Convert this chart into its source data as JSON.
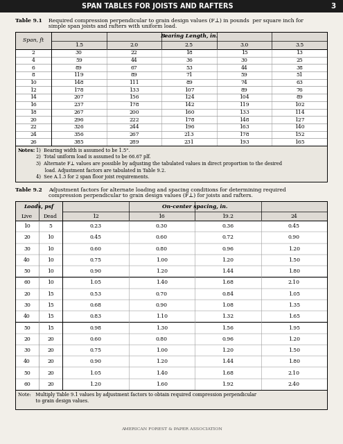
{
  "title": "SPAN TABLES FOR JOISTS AND RAFTERS",
  "page_num": "3",
  "bg_color": "#f2efe9",
  "header_bg": "#1c1c1c",
  "header_text_color": "#ffffff",
  "table1_title": "Table 9.1",
  "table1_desc_line1": "Required compression perpendicular to grain design values (F",
  "table1_desc_sub": "⊥",
  "table1_desc_line2": ") in pounds  per square inch for",
  "table1_desc_line3": "simple span joists and rafters with uniform load.",
  "table1_col_header": "Bearing Length, in.",
  "table1_data": [
    [
      2,
      30,
      22,
      18,
      15,
      13
    ],
    [
      4,
      59,
      44,
      36,
      30,
      25
    ],
    [
      6,
      89,
      67,
      53,
      44,
      38
    ],
    [
      8,
      119,
      89,
      71,
      59,
      51
    ],
    [
      10,
      148,
      111,
      89,
      74,
      63
    ],
    [
      12,
      178,
      133,
      107,
      89,
      76
    ],
    [
      14,
      207,
      156,
      124,
      104,
      89
    ],
    [
      16,
      237,
      178,
      142,
      119,
      102
    ],
    [
      18,
      267,
      200,
      160,
      133,
      114
    ],
    [
      20,
      296,
      222,
      178,
      148,
      127
    ],
    [
      22,
      326,
      244,
      196,
      163,
      140
    ],
    [
      24,
      356,
      267,
      213,
      178,
      152
    ],
    [
      26,
      385,
      289,
      231,
      193,
      165
    ]
  ],
  "table1_col_labels": [
    "1.5",
    "2.0",
    "2.5",
    "3.0",
    "3.5"
  ],
  "table1_note_lines": [
    "1)  Bearing width is assumed to be 1.5\".",
    "2)  Total uniform load is assumed to be 66.67 plf.",
    "3)  Alternate F⊥ values are possible by adjusting the tabulated values in direct proportion to the desired",
    "      load. Adjustment factors are tabulated in Table 9.2.",
    "4)  See A.1.3 for 2 span floor joist requirements."
  ],
  "table2_title": "Table 9.2",
  "table2_desc_line1": "Adjustment factors for alternate loading and spacing conditions for determining required",
  "table2_desc_line2": "compression perpendicular to grain design values (F⊥) for joists and rafters.",
  "table2_col_header": "On-center spacing, in.",
  "table2_loads_header": "Loads, psf",
  "table2_col_labels": [
    "12",
    "16",
    "19.2",
    "24"
  ],
  "table2_data": [
    [
      10,
      5,
      0.23,
      0.3,
      0.36,
      0.45
    ],
    [
      20,
      10,
      0.45,
      0.6,
      0.72,
      0.9
    ],
    [
      30,
      10,
      0.6,
      0.8,
      0.96,
      1.2
    ],
    [
      40,
      10,
      0.75,
      1.0,
      1.2,
      1.5
    ],
    [
      50,
      10,
      0.9,
      1.2,
      1.44,
      1.8
    ],
    [
      60,
      10,
      1.05,
      1.4,
      1.68,
      2.1
    ],
    [
      20,
      15,
      0.53,
      0.7,
      0.84,
      1.05
    ],
    [
      30,
      15,
      0.68,
      0.9,
      1.08,
      1.35
    ],
    [
      40,
      15,
      0.83,
      1.1,
      1.32,
      1.65
    ],
    [
      50,
      15,
      0.98,
      1.3,
      1.56,
      1.95
    ],
    [
      20,
      20,
      0.6,
      0.8,
      0.96,
      1.2
    ],
    [
      30,
      20,
      0.75,
      1.0,
      1.2,
      1.5
    ],
    [
      40,
      20,
      0.9,
      1.2,
      1.44,
      1.8
    ],
    [
      50,
      20,
      1.05,
      1.4,
      1.68,
      2.1
    ],
    [
      60,
      20,
      1.2,
      1.6,
      1.92,
      2.4
    ]
  ],
  "table2_note_line1": "Note:   Multiply Table 9.1 values by adjustment factors to obtain required compression perpendicular",
  "table2_note_line2": "            to grain design values.",
  "footer": "AMERICAN FOREST & PAPER ASSOCIATION",
  "group_separators": [
    5,
    9
  ]
}
